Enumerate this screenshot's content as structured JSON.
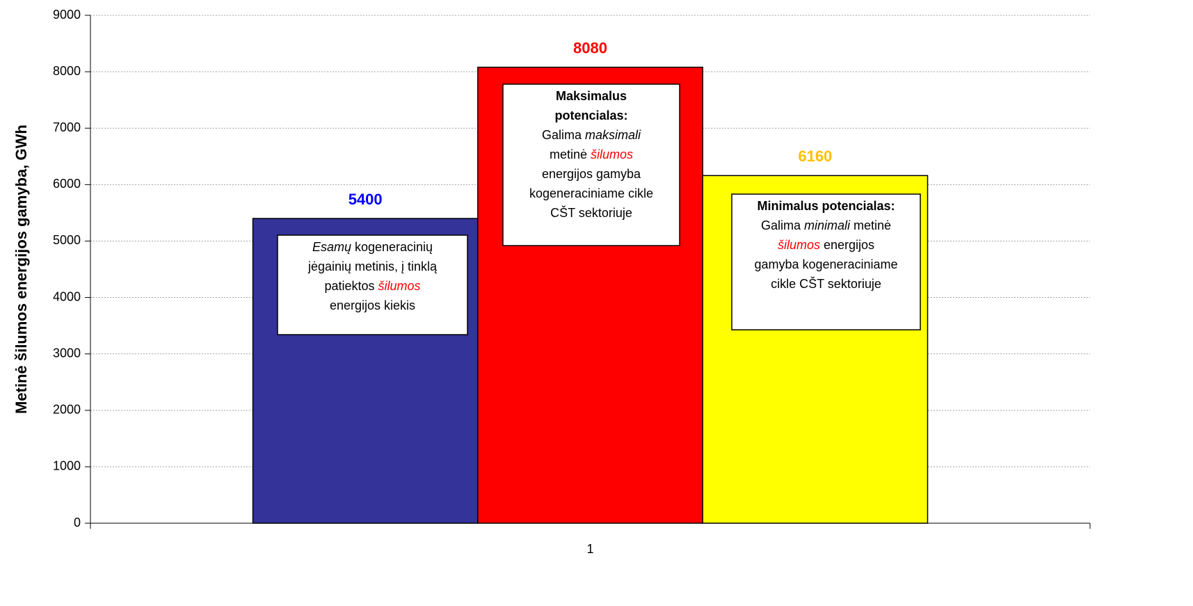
{
  "chart_data": {
    "type": "bar",
    "y_label": "Metinė šilumos energijos gamyba, GWh",
    "categories": [
      "1"
    ],
    "ylim": [
      0,
      9000
    ],
    "yticks": [
      0,
      1000,
      2000,
      3000,
      4000,
      5000,
      6000,
      7000,
      8000,
      9000
    ],
    "grid": true,
    "series": [
      {
        "color": "#333399",
        "label_color": "#0000ff",
        "values": [
          5400
        ],
        "annotation": [
          [
            {
              "text": "Esamų",
              "italic": true
            },
            {
              "text": " kogeneracinių"
            }
          ],
          [
            {
              "text": "jėgainių metinis, į tinklą"
            }
          ],
          [
            {
              "text": "patiektos "
            },
            {
              "text": "šilumos",
              "italic": true,
              "color": "#ff0000"
            }
          ],
          [
            {
              "text": "energijos kiekis"
            }
          ]
        ]
      },
      {
        "color": "#ff0000",
        "label_color": "#ff0000",
        "values": [
          8080
        ],
        "annotation": [
          [
            {
              "text": "Maksimalus",
              "bold": true
            }
          ],
          [
            {
              "text": "potencialas:",
              "bold": true
            }
          ],
          [
            {
              "text": "Galima "
            },
            {
              "text": "maksimali",
              "italic": true
            }
          ],
          [
            {
              "text": "metinė "
            },
            {
              "text": "šilumos",
              "italic": true,
              "color": "#ff0000"
            }
          ],
          [
            {
              "text": "energijos gamyba"
            }
          ],
          [
            {
              "text": "kogeneraciniame cikle"
            }
          ],
          [
            {
              "text": "CŠT sektoriuje"
            }
          ]
        ]
      },
      {
        "color": "#ffff00",
        "label_color": "#ffc000",
        "values": [
          6160
        ],
        "annotation": [
          [
            {
              "text": "Minimalus potencialas:",
              "bold": true
            }
          ],
          [
            {
              "text": "Galima "
            },
            {
              "text": "minimali",
              "italic": true
            },
            {
              "text": " metinė"
            }
          ],
          [
            {
              "text": "šilumos",
              "italic": true,
              "color": "#ff0000"
            },
            {
              "text": " energijos"
            }
          ],
          [
            {
              "text": "gamyba kogeneraciniame"
            }
          ],
          [
            {
              "text": "cikle CŠT sektoriuje"
            }
          ]
        ]
      }
    ]
  }
}
